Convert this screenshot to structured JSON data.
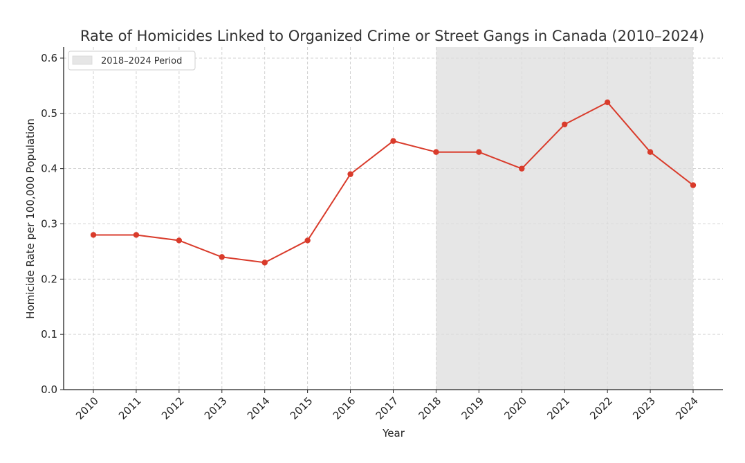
{
  "chart_data": {
    "type": "line",
    "title": "Rate of Homicides Linked to Organized Crime or Street Gangs in Canada (2010–2024)",
    "xlabel": "Year",
    "ylabel": "Homicide Rate per 100,000 Population",
    "x": [
      "2010",
      "2011",
      "2012",
      "2013",
      "2014",
      "2015",
      "2016",
      "2017",
      "2018",
      "2019",
      "2020",
      "2021",
      "2022",
      "2023",
      "2024"
    ],
    "y_ticks": [
      "0.0",
      "0.1",
      "0.2",
      "0.3",
      "0.4",
      "0.5",
      "0.6"
    ],
    "series": [
      {
        "values": [
          0.28,
          0.28,
          0.27,
          0.24,
          0.23,
          0.27,
          0.39,
          0.45,
          0.43,
          0.43,
          0.4,
          0.48,
          0.52,
          0.43,
          0.37
        ]
      }
    ],
    "ylim": [
      0,
      0.62
    ],
    "shaded_period": {
      "label": "2018–2024 Period",
      "start": "2018",
      "end": "2024"
    },
    "grid": true,
    "legend_position": "top-left",
    "colors": {
      "line": "#d93b2b",
      "shade": "#e6e6e6",
      "grid": "#cccccc"
    }
  }
}
